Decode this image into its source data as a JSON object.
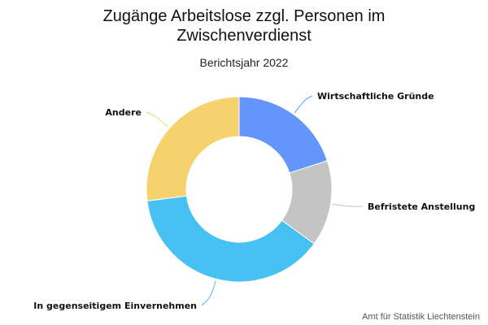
{
  "chart_data": {
    "type": "pie",
    "variant": "donut",
    "title": "Zugänge Arbeitslose zzgl. Personen im Zwischenverdienst",
    "subtitle": "Berichtsjahr 2022",
    "credits": "Amt für Statistik Liechtenstein",
    "slices": [
      {
        "label": "Wirtschaftliche Gründe",
        "value": 20,
        "color": "#6495fa"
      },
      {
        "label": "Befristete Anstellung",
        "value": 15,
        "color": "#c4c4c4"
      },
      {
        "label": "In gegenseitigem Einvernehmen",
        "value": 38,
        "color": "#47c1f2"
      },
      {
        "label": "Andere",
        "value": 27,
        "color": "#f5d26e"
      }
    ]
  }
}
